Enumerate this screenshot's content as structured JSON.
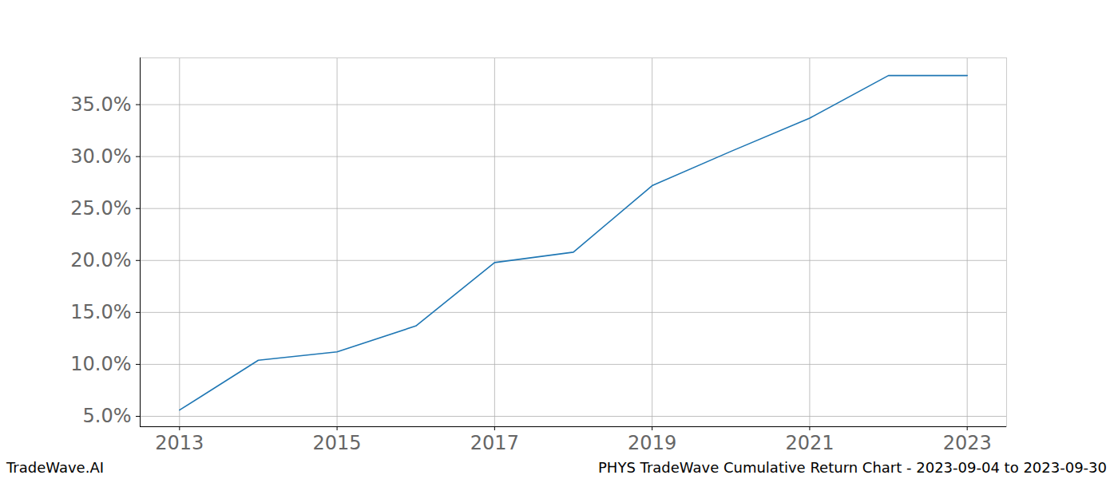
{
  "chart_data": {
    "type": "line",
    "title": "PHYS TradeWave Cumulative Return Chart - 2023-09-04 to 2023-09-30",
    "credit": "TradeWave.AI",
    "x": [
      2013,
      2014,
      2015,
      2016,
      2017,
      2018,
      2019,
      2020,
      2021,
      2022,
      2023
    ],
    "values": [
      5.6,
      10.4,
      11.2,
      13.7,
      19.8,
      20.8,
      27.2,
      30.5,
      33.7,
      37.8,
      37.8
    ],
    "color": "#1f77b4",
    "xlim": [
      2012.5,
      2023.5
    ],
    "xticks": [
      2013,
      2015,
      2017,
      2019,
      2021,
      2023
    ],
    "ylim": [
      4.0,
      39.5
    ],
    "yticks": [
      {
        "value": 5,
        "label": "5.0%"
      },
      {
        "value": 10,
        "label": "10.0%"
      },
      {
        "value": 15,
        "label": "15.0%"
      },
      {
        "value": 20,
        "label": "20.0%"
      },
      {
        "value": 25,
        "label": "25.0%"
      },
      {
        "value": 30,
        "label": "30.0%"
      },
      {
        "value": 35,
        "label": "35.0%"
      }
    ],
    "grid": true
  }
}
